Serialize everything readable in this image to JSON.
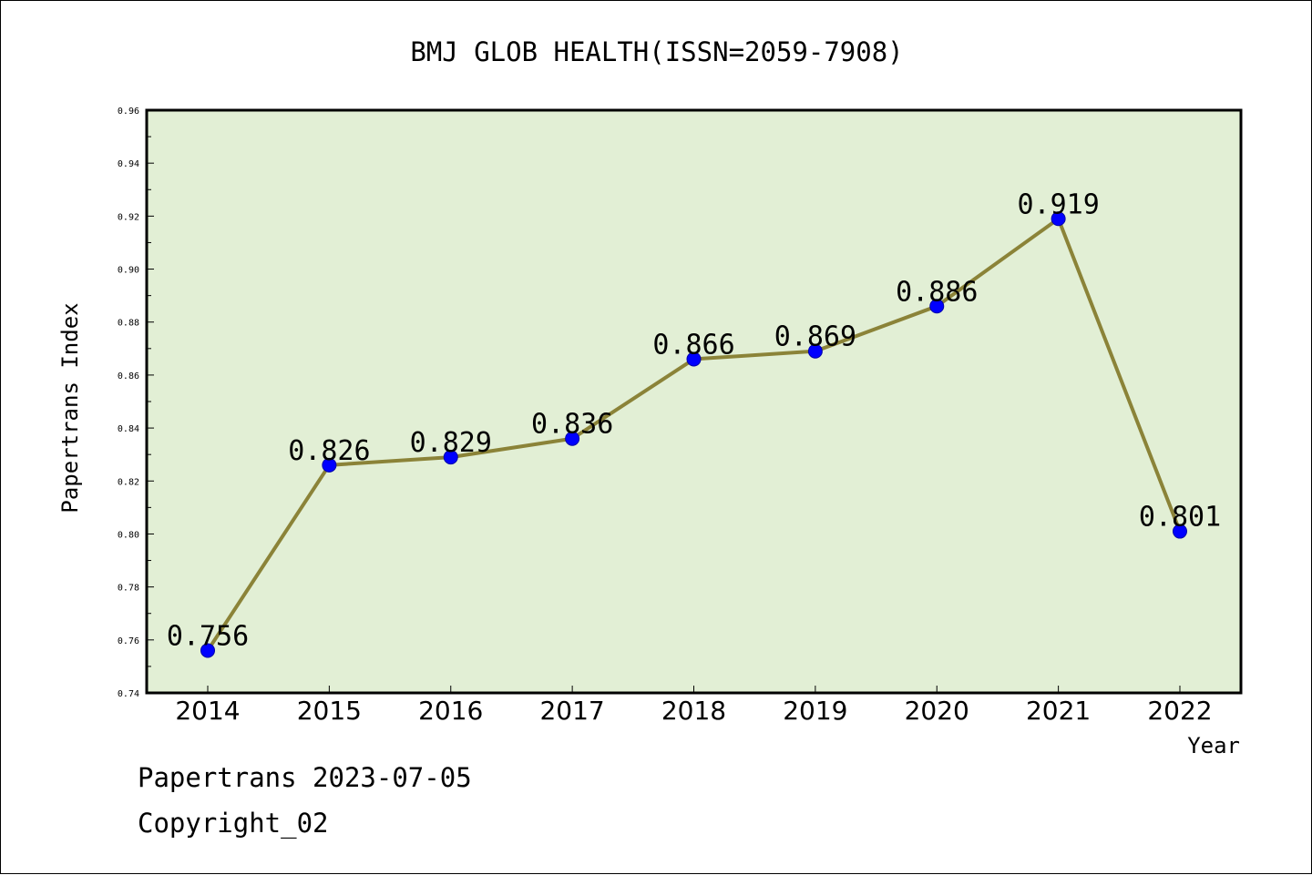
{
  "chart_data": {
    "type": "line",
    "title": "BMJ GLOB HEALTH(ISSN=2059-7908)",
    "xlabel": "Year",
    "ylabel": "Papertrans Index",
    "categories": [
      "2014",
      "2015",
      "2016",
      "2017",
      "2018",
      "2019",
      "2020",
      "2021",
      "2022"
    ],
    "values": [
      0.756,
      0.826,
      0.829,
      0.836,
      0.866,
      0.869,
      0.886,
      0.919,
      0.801
    ],
    "value_labels": [
      "0.756",
      "0.826",
      "0.829",
      "0.836",
      "0.866",
      "0.869",
      "0.886",
      "0.919",
      "0.801"
    ],
    "ylim": [
      0.74,
      0.96
    ],
    "yticks": [
      "0.74",
      "0.76",
      "0.78",
      "0.80",
      "0.82",
      "0.84",
      "0.86",
      "0.88",
      "0.90",
      "0.92",
      "0.94",
      "0.96"
    ],
    "grid": false,
    "legend": "none",
    "colors": {
      "plot_background": "#e2efd5",
      "line": "#8b8338",
      "marker": "#0000ff"
    }
  },
  "footer": {
    "line1": "Papertrans 2023-07-05",
    "line2": "Copyright_02"
  }
}
